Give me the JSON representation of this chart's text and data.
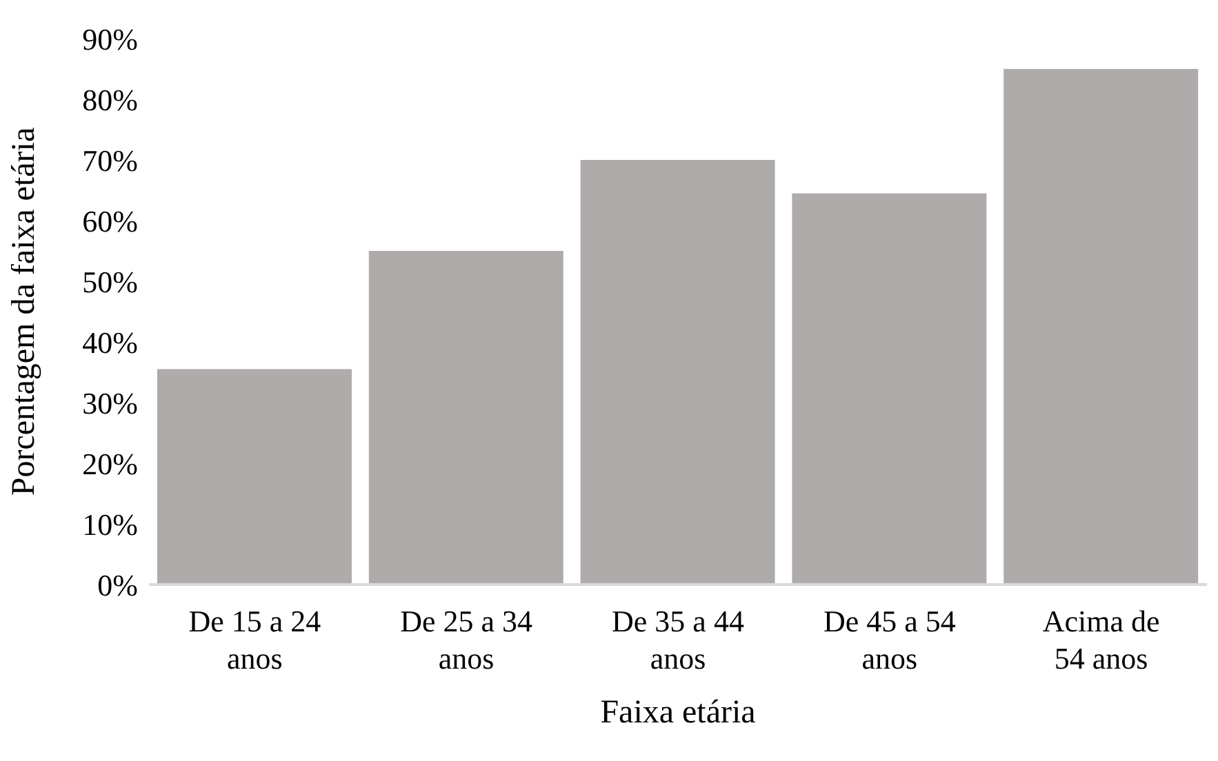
{
  "chart_data": {
    "type": "bar",
    "xlabel": "Faixa etária",
    "ylabel": "Porcentagem da faixa etária",
    "categories": [
      "De 15 a 24 anos",
      "De 25 a 34 anos",
      "De 35 a 44 anos",
      "De 45 a 54 anos",
      "Acima de 54 anos"
    ],
    "values": [
      35.5,
      55,
      70,
      64.5,
      85
    ],
    "color": "#afabab",
    "ylim": [
      0,
      90
    ],
    "yticks": [
      {
        "value": 0,
        "label": "0%"
      },
      {
        "value": 10,
        "label": "10%"
      },
      {
        "value": 20,
        "label": "20%"
      },
      {
        "value": 30,
        "label": "30%"
      },
      {
        "value": 40,
        "label": "40%"
      },
      {
        "value": 50,
        "label": "50%"
      },
      {
        "value": 60,
        "label": "60%"
      },
      {
        "value": 70,
        "label": "70%"
      },
      {
        "value": 80,
        "label": "80%"
      },
      {
        "value": 90,
        "label": "90%"
      }
    ],
    "grid": false,
    "legend": false
  }
}
